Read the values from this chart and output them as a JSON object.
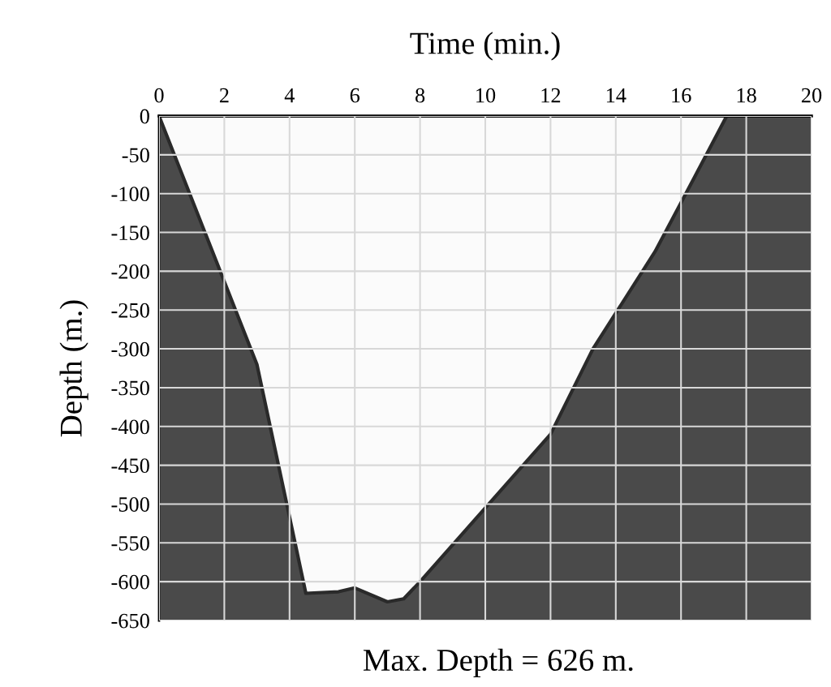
{
  "chart_data": {
    "type": "area",
    "xlabel": "Time (min.)",
    "ylabel": "Depth (m.)",
    "x": [
      0,
      3,
      4.5,
      5.5,
      6,
      7,
      7.5,
      8,
      12,
      13.3,
      15.2,
      16.4,
      17.4,
      20
    ],
    "series": [
      {
        "color": "#fbfbfb",
        "values": [
          0,
          -320,
          -615,
          -613,
          -608,
          -626,
          -622,
          -600,
          -410,
          -300,
          -175,
          -80,
          0,
          0
        ]
      }
    ],
    "xlim": [
      0,
      20
    ],
    "xticks": [
      0,
      2,
      4,
      6,
      8,
      10,
      12,
      14,
      16,
      18,
      20
    ],
    "ylim": [
      -650,
      0
    ],
    "yticks": [
      0,
      -50,
      -100,
      -150,
      -200,
      -250,
      -300,
      -350,
      -400,
      -450,
      -500,
      -550,
      -600,
      -650
    ],
    "grid": true,
    "annotations": [
      "Max. Depth = 626 m."
    ]
  }
}
